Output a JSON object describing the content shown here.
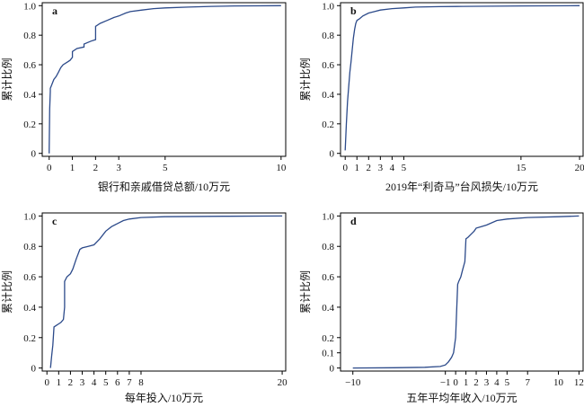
{
  "chart_data": [
    {
      "type": "line",
      "panel_label": "a",
      "xlabel": "银行和亲戚借贷总额/10万元",
      "ylabel": "累计比例",
      "xlim": [
        -0.3,
        10.2
      ],
      "ylim": [
        -0.02,
        1.02
      ],
      "xticks": [
        0,
        1,
        2,
        3,
        5,
        10
      ],
      "xtick_labels": [
        "0",
        "1",
        "2",
        "3",
        "5",
        "10"
      ],
      "yticks": [
        0,
        0.2,
        0.4,
        0.6,
        0.8,
        1.0
      ],
      "ytick_labels": [
        "0",
        "0.2",
        "0.4",
        "0.6",
        "0.8",
        "1.0"
      ],
      "series": [
        {
          "x": [
            0,
            0.02,
            0.05,
            0.05,
            0.1,
            0.2,
            0.3,
            0.4,
            0.5,
            0.6,
            0.8,
            0.9,
            1.0,
            1.0,
            1.2,
            1.5,
            1.5,
            1.8,
            2.0,
            2.0,
            2.2,
            2.5,
            2.8,
            3.0,
            3.3,
            3.5,
            4.0,
            4.5,
            5.0,
            6.0,
            7.0,
            8.0,
            10.0
          ],
          "y": [
            0.0,
            0.3,
            0.42,
            0.44,
            0.46,
            0.5,
            0.52,
            0.55,
            0.58,
            0.6,
            0.62,
            0.63,
            0.65,
            0.69,
            0.71,
            0.72,
            0.74,
            0.76,
            0.77,
            0.86,
            0.88,
            0.9,
            0.92,
            0.93,
            0.95,
            0.96,
            0.97,
            0.98,
            0.985,
            0.99,
            0.995,
            0.998,
            1.0
          ]
        }
      ]
    },
    {
      "type": "line",
      "panel_label": "b",
      "xlabel": "2019年“利奇马”台风损失/10万元",
      "ylabel": "累计比例",
      "xlim": [
        -0.4,
        20.3
      ],
      "ylim": [
        -0.02,
        1.02
      ],
      "xticks": [
        0,
        1,
        2,
        3,
        4,
        5,
        15,
        20
      ],
      "xtick_labels": [
        "0",
        "1",
        "2",
        "3",
        "4",
        "5",
        "15",
        "20"
      ],
      "yticks": [
        0,
        0.2,
        0.4,
        0.6,
        0.8,
        1.0
      ],
      "ytick_labels": [
        "0",
        "0.2",
        "0.4",
        "0.6",
        "0.8",
        "1.0"
      ],
      "series": [
        {
          "x": [
            0,
            0.1,
            0.2,
            0.3,
            0.4,
            0.5,
            0.6,
            0.7,
            0.8,
            0.9,
            1.0,
            1.2,
            1.5,
            2.0,
            2.5,
            3.0,
            4.0,
            5.0,
            6.0,
            8.0,
            10.0,
            15.0,
            20.0
          ],
          "y": [
            0.02,
            0.2,
            0.35,
            0.45,
            0.55,
            0.62,
            0.7,
            0.78,
            0.84,
            0.88,
            0.9,
            0.91,
            0.93,
            0.95,
            0.96,
            0.97,
            0.98,
            0.985,
            0.99,
            0.993,
            0.995,
            0.998,
            1.0
          ]
        }
      ]
    },
    {
      "type": "line",
      "panel_label": "c",
      "xlabel": "每年投入/10万元",
      "ylabel": "累计比例",
      "xlim": [
        -0.4,
        20.3
      ],
      "ylim": [
        -0.02,
        1.02
      ],
      "xticks": [
        0,
        1,
        2,
        3,
        4,
        5,
        6,
        7,
        8,
        20
      ],
      "xtick_labels": [
        "0",
        "1",
        "2",
        "3",
        "4",
        "5",
        "6",
        "7",
        "8",
        "20"
      ],
      "yticks": [
        0,
        0.2,
        0.4,
        0.6,
        0.8,
        1.0
      ],
      "ytick_labels": [
        "0",
        "0.2",
        "0.4",
        "0.6",
        "0.8",
        "1.0"
      ],
      "series": [
        {
          "x": [
            0.3,
            0.4,
            0.5,
            0.6,
            0.8,
            1.0,
            1.2,
            1.4,
            1.5,
            1.5,
            1.7,
            2.0,
            2.2,
            2.5,
            2.8,
            3.0,
            3.5,
            4.0,
            4.5,
            5.0,
            5.5,
            6.0,
            6.5,
            7.0,
            8.0,
            10.0,
            15.0,
            20.0
          ],
          "y": [
            0.0,
            0.08,
            0.15,
            0.27,
            0.28,
            0.29,
            0.3,
            0.32,
            0.4,
            0.57,
            0.6,
            0.62,
            0.65,
            0.72,
            0.78,
            0.79,
            0.8,
            0.81,
            0.85,
            0.9,
            0.93,
            0.95,
            0.97,
            0.98,
            0.99,
            0.995,
            0.998,
            1.0
          ]
        }
      ]
    },
    {
      "type": "line",
      "panel_label": "d",
      "xlabel": "五年平均年收入/10万元",
      "ylabel": "累计比例",
      "xlim": [
        -11.2,
        12.4
      ],
      "ylim": [
        -0.02,
        1.02
      ],
      "xticks": [
        -10,
        -1,
        0,
        1,
        2,
        3,
        4,
        5,
        7,
        10,
        12
      ],
      "xtick_labels": [
        "−10",
        "−1",
        "0",
        "1",
        "2",
        "3",
        "4",
        "5",
        "7",
        "10",
        "12"
      ],
      "yticks": [
        0,
        0.1,
        0.2,
        0.4,
        0.6,
        0.8,
        1.0
      ],
      "ytick_labels": [
        "0",
        "0.1",
        "0.2",
        "0.4",
        "0.6",
        "0.8",
        "1.0"
      ],
      "series": [
        {
          "x": [
            -10,
            -6,
            -3,
            -1.5,
            -1.0,
            -0.7,
            -0.4,
            -0.2,
            0.0,
            0.2,
            0.3,
            0.5,
            0.7,
            0.9,
            1.0,
            1.2,
            1.5,
            1.8,
            2.0,
            2.5,
            3.0,
            4.0,
            5.0,
            7.0,
            10.0,
            12.0
          ],
          "y": [
            0.0,
            0.002,
            0.005,
            0.01,
            0.02,
            0.04,
            0.07,
            0.1,
            0.2,
            0.55,
            0.57,
            0.6,
            0.65,
            0.7,
            0.85,
            0.86,
            0.88,
            0.9,
            0.92,
            0.93,
            0.94,
            0.97,
            0.98,
            0.99,
            0.995,
            1.0
          ]
        }
      ]
    }
  ]
}
